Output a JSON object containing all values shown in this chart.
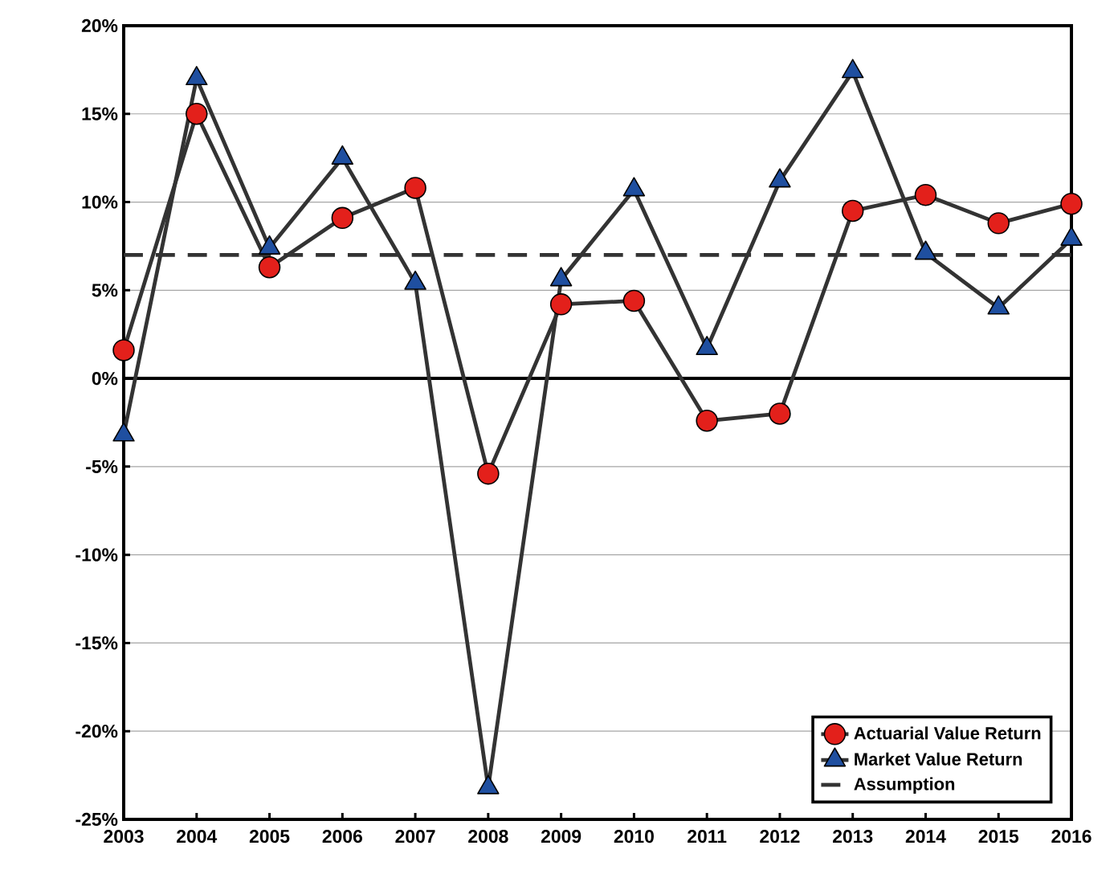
{
  "chart_data": {
    "type": "line",
    "categories": [
      "2003",
      "2004",
      "2005",
      "2006",
      "2007",
      "2008",
      "2009",
      "2010",
      "2011",
      "2012",
      "2013",
      "2014",
      "2015",
      "2016"
    ],
    "series": [
      {
        "name": "Actuarial Value Return",
        "color": "#e3201b",
        "marker": "circle",
        "values": [
          1.6,
          15.0,
          6.3,
          9.1,
          10.8,
          -5.4,
          4.2,
          4.4,
          -2.4,
          -2.0,
          9.5,
          10.4,
          8.8,
          9.9
        ]
      },
      {
        "name": "Market Value Return",
        "color": "#1f4fa0",
        "marker": "triangle",
        "values": [
          -3.2,
          17.0,
          7.4,
          12.5,
          5.4,
          -23.2,
          5.6,
          10.7,
          1.7,
          11.2,
          17.4,
          7.1,
          4.0,
          7.9
        ]
      },
      {
        "name": "Assumption",
        "color": "#333333",
        "marker": "none",
        "line_style": "dashed",
        "values": [
          7,
          7,
          7,
          7,
          7,
          7,
          7,
          7,
          7,
          7,
          7,
          7,
          7,
          7
        ]
      }
    ],
    "ylim": [
      -25,
      20
    ],
    "yticks": [
      {
        "value": -25,
        "label": "-25%"
      },
      {
        "value": -20,
        "label": "-20%"
      },
      {
        "value": -15,
        "label": "-15%"
      },
      {
        "value": -10,
        "label": "-10%"
      },
      {
        "value": -5,
        "label": "-5%"
      },
      {
        "value": 0,
        "label": "0%"
      },
      {
        "value": 5,
        "label": "5%"
      },
      {
        "value": 10,
        "label": "10%"
      },
      {
        "value": 15,
        "label": "15%"
      },
      {
        "value": 20,
        "label": "20%"
      }
    ],
    "grid": "y",
    "legend": "bottom right"
  }
}
